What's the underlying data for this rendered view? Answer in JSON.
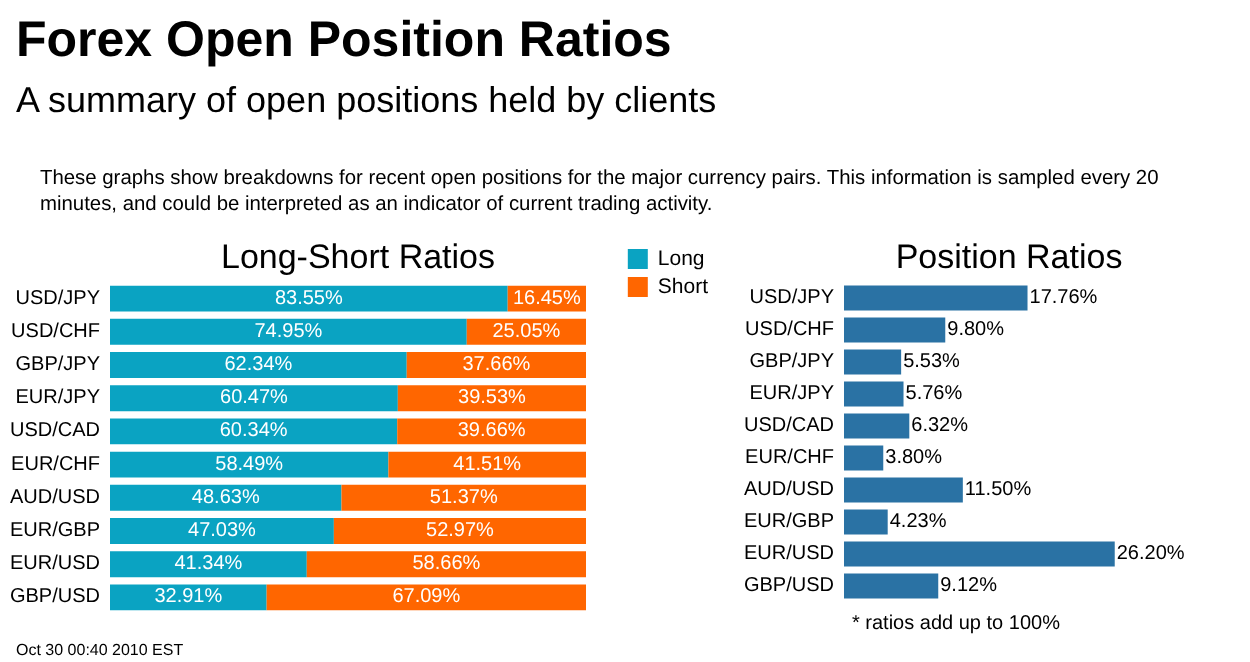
{
  "chart_data": [
    {
      "type": "other",
      "title": "Forex Open Position Ratios",
      "subtitle": "A summary of open positions held by clients",
      "annotations": [
        "These graphs show breakdowns for recent open positions for the major currency pairs. This information is sampled every 20 minutes, and could be interpreted as an indicator of current trading activity."
      ]
    },
    {
      "type": "bar",
      "title": "Long-Short Ratios",
      "orientation": "horizontal",
      "stacked": true,
      "legend": "top right",
      "tick_labels": "y",
      "categories": [
        "USD/JPY",
        "USD/CHF",
        "GBP/JPY",
        "EUR/JPY",
        "USD/CAD",
        "EUR/CHF",
        "AUD/USD",
        "EUR/GBP",
        "EUR/USD",
        "GBP/USD"
      ],
      "series": [
        {
          "name": "Long",
          "color": "#0aa3c2",
          "values": [
            83.55,
            74.95,
            62.34,
            60.47,
            60.34,
            58.49,
            48.63,
            47.03,
            41.34,
            32.91
          ],
          "value_labels": [
            "83.55%",
            "74.95%",
            "62.34%",
            "60.47%",
            "60.34%",
            "58.49%",
            "48.63%",
            "47.03%",
            "41.34%",
            "32.91%"
          ]
        },
        {
          "name": "Short",
          "color": "#ff6600",
          "values": [
            16.45,
            25.05,
            37.66,
            39.53,
            39.66,
            41.51,
            51.37,
            52.97,
            58.66,
            67.09
          ],
          "value_labels": [
            "16.45%",
            "25.05%",
            "37.66%",
            "39.53%",
            "39.66%",
            "41.51%",
            "51.37%",
            "52.97%",
            "58.66%",
            "67.09%"
          ]
        }
      ],
      "annotations": [
        "Oct 30 00:40 2010 EST"
      ]
    },
    {
      "type": "bar",
      "title": "Position Ratios",
      "orientation": "horizontal",
      "tick_labels": "y",
      "categories": [
        "USD/JPY",
        "USD/CHF",
        "GBP/JPY",
        "EUR/JPY",
        "USD/CAD",
        "EUR/CHF",
        "AUD/USD",
        "EUR/GBP",
        "EUR/USD",
        "GBP/USD"
      ],
      "series": [
        {
          "color": "#2a72a4",
          "values": [
            17.76,
            9.8,
            5.53,
            5.76,
            6.32,
            3.8,
            11.5,
            4.23,
            26.2,
            9.12
          ],
          "value_labels": [
            "17.76%",
            "9.80%",
            "5.53%",
            "5.76%",
            "6.32%",
            "3.80%",
            "11.50%",
            "4.23%",
            "26.20%",
            "9.12%"
          ]
        }
      ],
      "annotations": [
        "* ratios add up to 100%"
      ]
    }
  ]
}
